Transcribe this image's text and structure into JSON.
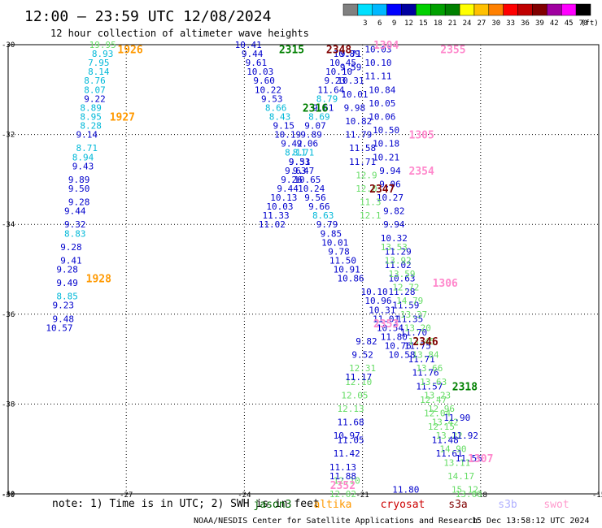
{
  "header": {
    "title": "12:00 — 23:59 UTC 12/08/2024",
    "subtitle": "12 hour collection of altimeter wave heights"
  },
  "colorbar": {
    "unit": "(ft)",
    "swatches": [
      {
        "label": "",
        "color": "#808080"
      },
      {
        "label": "3",
        "color": "#00e0ff"
      },
      {
        "label": "6",
        "color": "#00b8ff"
      },
      {
        "label": "9",
        "color": "#0000ff"
      },
      {
        "label": "12",
        "color": "#0000a0"
      },
      {
        "label": "15",
        "color": "#00d000"
      },
      {
        "label": "18",
        "color": "#00a000"
      },
      {
        "label": "21",
        "color": "#008000"
      },
      {
        "label": "24",
        "color": "#ffff00"
      },
      {
        "label": "27",
        "color": "#ffc000"
      },
      {
        "label": "30",
        "color": "#ff8000"
      },
      {
        "label": "33",
        "color": "#ff0000"
      },
      {
        "label": "36",
        "color": "#c00000"
      },
      {
        "label": "39",
        "color": "#800000"
      },
      {
        "label": "42",
        "color": "#a000a0"
      },
      {
        "label": "45",
        "color": "#ff00ff"
      },
      {
        "label": "70",
        "color": "#000000"
      }
    ]
  },
  "footer": {
    "note": "note:  1) Time is in UTC; 2) SWH is in feet",
    "credit": "NOAA/NESDIS Center for Satellite Applications and Research",
    "timestamp": "15 Dec 13:58:12 UTC 2024",
    "satellites": [
      {
        "name": "jason3",
        "color": "#006400"
      },
      {
        "name": "altika",
        "color": "#ff9900"
      },
      {
        "name": "cryosat",
        "color": "#cc0000"
      },
      {
        "name": "s3a",
        "color": "#800000"
      },
      {
        "name": "s3b",
        "color": "#b0b0ff"
      },
      {
        "name": "swot",
        "color": "#ff99cc"
      }
    ]
  },
  "chart_data": {
    "type": "scatter",
    "xlim": [
      -30,
      -15
    ],
    "ylim": [
      -40,
      -30
    ],
    "x_ticks": [
      "-30",
      "-27",
      "-24",
      "-21",
      "-18",
      "-15"
    ],
    "y_ticks": [
      "-30",
      "-32",
      "-34",
      "-36",
      "-38",
      "-40"
    ],
    "grid": true,
    "colors": {
      "c6": "#00b8d8",
      "c9": "#0000cc",
      "c12": "#00007a",
      "c15": "#66dd66",
      "jason3": "#008000",
      "altika": "#ff9900",
      "cryosat": "#cc0000",
      "s3a": "#800000",
      "swot": "#ff88cc"
    },
    "track_labels": [
      {
        "text": "1926",
        "x": -26.9,
        "y": -30.1,
        "sat": "altika"
      },
      {
        "text": "1927",
        "x": -27.1,
        "y": -31.6,
        "sat": "altika"
      },
      {
        "text": "1928",
        "x": -27.7,
        "y": -35.2,
        "sat": "altika"
      },
      {
        "text": "2315",
        "x": -22.8,
        "y": -30.1,
        "sat": "jason3"
      },
      {
        "text": "2316",
        "x": -22.2,
        "y": -31.4,
        "sat": "jason3"
      },
      {
        "text": "2318",
        "x": -18.4,
        "y": -37.6,
        "sat": "jason3"
      },
      {
        "text": "2348",
        "x": -21.6,
        "y": -30.1,
        "sat": "s3a"
      },
      {
        "text": "2347",
        "x": -20.5,
        "y": -33.2,
        "sat": "s3a"
      },
      {
        "text": "2346",
        "x": -19.4,
        "y": -36.6,
        "sat": "s3a"
      },
      {
        "text": "1304",
        "x": -20.4,
        "y": -30.0,
        "sat": "swot"
      },
      {
        "text": "1305",
        "x": -19.5,
        "y": -32.0,
        "sat": "swot"
      },
      {
        "text": "1306",
        "x": -18.9,
        "y": -35.3,
        "sat": "swot"
      },
      {
        "text": "1307",
        "x": -18.0,
        "y": -39.2,
        "sat": "swot"
      },
      {
        "text": "2355",
        "x": -18.7,
        "y": -30.1,
        "sat": "swot"
      },
      {
        "text": "2354",
        "x": -19.5,
        "y": -32.8,
        "sat": "swot"
      },
      {
        "text": "2353",
        "x": -20.4,
        "y": -36.2,
        "sat": "swot"
      },
      {
        "text": "2352",
        "x": -21.5,
        "y": -39.8,
        "sat": "swot"
      }
    ],
    "tracks": [
      {
        "name": "altika-1926",
        "x": [
          -27.6,
          -27.6,
          -27.7,
          -27.7,
          -27.8,
          -27.8,
          -27.8,
          -27.9,
          -27.9,
          -27.9,
          -28.0,
          -28.0,
          -28.1,
          -28.1,
          -28.2,
          -28.2,
          -28.2,
          -28.3,
          -28.3,
          -28.3,
          -28.4,
          -28.4,
          -28.5,
          -28.5,
          -28.5,
          -28.6,
          -28.6,
          -28.7,
          -28.7,
          -28.7
        ],
        "y": [
          -30.0,
          -30.2,
          -30.4,
          -30.6,
          -30.8,
          -31.0,
          -31.2,
          -31.4,
          -31.6,
          -31.8,
          -32.0,
          -32.3,
          -32.5,
          -32.7,
          -33.0,
          -33.2,
          -33.5,
          -33.7,
          -34.0,
          -34.2,
          -34.5,
          -34.8,
          -35.0,
          -35.3,
          -35.6,
          -35.8,
          -36.1,
          -36.3,
          -36.6,
          -36.8
        ],
        "values": [
          "19.95",
          "8.93",
          "7.95",
          "8.14",
          "8.76",
          "8.07",
          "9.22",
          "8.89",
          "8.95",
          "8.28",
          "9.14",
          "8.71",
          "8.94",
          "9.43",
          "9.89",
          "9.50",
          "9.28",
          "9.44",
          "9.32",
          "8.83",
          "9.28",
          "9.41",
          "9.28",
          "9.49",
          "8.85",
          "9.23",
          "9.48",
          "10.57",
          "",
          ""
        ],
        "cls": [
          "c15",
          "c6",
          "c6",
          "c6",
          "c6",
          "c6",
          "c9",
          "c6",
          "c6",
          "c6",
          "c9",
          "c6",
          "c6",
          "c9",
          "c9",
          "c9",
          "c9",
          "c9",
          "c9",
          "c6",
          "c9",
          "c9",
          "c9",
          "c9",
          "c6",
          "c9",
          "c9",
          "c9",
          "c9",
          "c9"
        ]
      },
      {
        "name": "jason3-2315",
        "x": [
          -23.9,
          -23.8,
          -23.7,
          -23.6,
          -23.5,
          -23.4,
          -23.3,
          -23.2,
          -23.1,
          -23.0,
          -22.9,
          -22.8,
          -22.7,
          -22.6,
          -22.5,
          -22.4,
          -22.3,
          -22.2,
          -22.1,
          -22.0,
          -21.9,
          -21.8,
          -21.7,
          -21.6,
          -21.5,
          -21.4,
          -21.3
        ],
        "y": [
          -30.0,
          -30.2,
          -30.4,
          -30.6,
          -30.8,
          -31.0,
          -31.2,
          -31.4,
          -31.6,
          -31.8,
          -32.0,
          -32.2,
          -32.4,
          -32.6,
          -32.8,
          -33.0,
          -33.2,
          -33.4,
          -33.6,
          -33.8,
          -34.0,
          -34.2,
          -34.4,
          -34.6,
          -34.8,
          -35.0,
          -35.2
        ],
        "values": [
          "10.41",
          "9.44",
          "9.61",
          "10.03",
          "9.60",
          "10.22",
          "9.53",
          "8.66",
          "8.43",
          "9.15",
          "10.19",
          "9.42",
          "8.11",
          "9.53",
          "9.47",
          "10.65",
          "10.24",
          "9.56",
          "9.66",
          "8.63",
          "9.79",
          "9.85",
          "10.01",
          "9.78",
          "11.50",
          "10.91",
          "10.86"
        ],
        "cls": [
          "c9",
          "c9",
          "c9",
          "c9",
          "c9",
          "c9",
          "c9",
          "c6",
          "c6",
          "c9",
          "c9",
          "c9",
          "c6",
          "c9",
          "c9",
          "c9",
          "c9",
          "c9",
          "c9",
          "c6",
          "c9",
          "c9",
          "c9",
          "c9",
          "c9",
          "c9",
          "c9"
        ]
      },
      {
        "name": "jason3-2316",
        "x": [
          -21.4,
          -21.5,
          -21.6,
          -21.7,
          -21.8,
          -21.9,
          -22.0,
          -22.1,
          -22.2,
          -22.3,
          -22.4,
          -22.5,
          -22.6,
          -22.7,
          -22.8,
          -22.9,
          -23.0,
          -23.1,
          -23.2,
          -23.3
        ],
        "y": [
          -30.2,
          -30.4,
          -30.6,
          -30.8,
          -31.0,
          -31.2,
          -31.4,
          -31.6,
          -31.8,
          -32.0,
          -32.2,
          -32.4,
          -32.6,
          -32.8,
          -33.0,
          -33.2,
          -33.4,
          -33.6,
          -33.8,
          -34.0
        ],
        "values": [
          "10.89",
          "10.45",
          "10.10",
          "9.23",
          "11.64",
          "8.79",
          "9.61",
          "8.69",
          "9.07",
          "9.89",
          "9.06",
          "8.71",
          "9.31",
          "9.63",
          "9.26",
          "9.44",
          "10.13",
          "10.03",
          "11.33",
          "11.02"
        ],
        "cls": [
          "c9",
          "c9",
          "c9",
          "c9",
          "c9",
          "c6",
          "c9",
          "c6",
          "c9",
          "c9",
          "c9",
          "c6",
          "c9",
          "c9",
          "c9",
          "c9",
          "c9",
          "c9",
          "c9",
          "c9"
        ]
      },
      {
        "name": "jason3-2318-blue",
        "x": [
          -20.6,
          -20.6,
          -20.6,
          -20.5,
          -20.5,
          -20.5,
          -20.4,
          -20.4,
          -20.4,
          -20.3,
          -20.3,
          -20.3,
          -20.2,
          -20.2,
          -20.2,
          -20.1,
          -20.1,
          -20.0,
          -20.0
        ],
        "y": [
          -30.1,
          -30.4,
          -30.7,
          -31.0,
          -31.3,
          -31.6,
          -31.9,
          -32.2,
          -32.5,
          -32.8,
          -33.1,
          -33.4,
          -33.7,
          -34.0,
          -34.3,
          -34.6,
          -34.9,
          -35.2,
          -35.5
        ],
        "values": [
          "10.03",
          "10.10",
          "11.11",
          "10.84",
          "10.05",
          "10.06",
          "10.50",
          "10.18",
          "10.21",
          "9.94",
          "9.06",
          "10.27",
          "9.82",
          "9.94",
          "10.32",
          "11.29",
          "11.02",
          "10.63",
          "11.28"
        ],
        "cls": [
          "c9",
          "c9",
          "c9",
          "c9",
          "c9",
          "c9",
          "c9",
          "c9",
          "c9",
          "c9",
          "c9",
          "c9",
          "c9",
          "c9",
          "c9",
          "c9",
          "c9",
          "c9",
          "c9"
        ]
      },
      {
        "name": "s3a-2348",
        "x": [
          -21.3,
          -21.3,
          -21.3,
          -21.2,
          -21.2,
          -21.1,
          -21.1,
          -21.0,
          -21.0,
          -20.9,
          -20.9,
          -20.8,
          -20.8
        ],
        "y": [
          -30.2,
          -30.5,
          -30.8,
          -31.1,
          -31.4,
          -31.7,
          -32.0,
          -32.3,
          -32.6,
          -32.9,
          -33.2,
          -33.5,
          -33.8
        ],
        "values": [
          "9.71",
          "9.59",
          "10.31",
          "10.01",
          "9.98",
          "10.82",
          "11.79",
          "11.58",
          "11.71",
          "12.9",
          "12.0",
          "11.3",
          "12.1"
        ],
        "cls": [
          "c9",
          "c9",
          "c9",
          "c9",
          "c9",
          "c9",
          "c9",
          "c9",
          "c9",
          "c15",
          "c15",
          "c15",
          "c15"
        ]
      },
      {
        "name": "s3a-2346",
        "x": [
          -19.9,
          -19.8,
          -19.7,
          -19.6,
          -19.5,
          -19.4,
          -19.3,
          -19.2,
          -19.1,
          -19.0,
          -18.9,
          -18.8
        ],
        "y": [
          -35.8,
          -36.1,
          -36.4,
          -36.7,
          -37.0,
          -37.3,
          -37.6,
          -37.9,
          -38.2,
          -38.5,
          -38.8,
          -39.1
        ],
        "values": [
          "11.59",
          "11.35",
          "11.70",
          "11.75",
          "11.71",
          "11.76",
          "11.57",
          "12.47",
          "12.04",
          "12.15",
          "11.48",
          "11.61"
        ],
        "cls": [
          "c9",
          "c9",
          "c9",
          "c9",
          "c9",
          "c9",
          "c9",
          "c15",
          "c15",
          "c15",
          "c9",
          "c9"
        ]
      },
      {
        "name": "green-2318",
        "x": [
          -20.2,
          -20.1,
          -20.0,
          -19.9,
          -19.8,
          -19.7,
          -19.6,
          -19.5,
          -19.4,
          -19.3,
          -19.2,
          -19.1,
          -19.0,
          -18.9,
          -18.8,
          -18.7,
          -18.6,
          -18.5,
          -18.4,
          -18.3
        ],
        "y": [
          -34.5,
          -34.8,
          -35.1,
          -35.4,
          -35.7,
          -36.0,
          -36.3,
          -36.6,
          -36.9,
          -37.2,
          -37.5,
          -37.8,
          -38.1,
          -38.4,
          -38.7,
          -39.0,
          -39.3,
          -39.6,
          -39.9,
          -40.0
        ],
        "values": [
          "13.53",
          "13.92",
          "13.59",
          "12.72",
          "14.79",
          "13.37",
          "13.20",
          "13.45",
          "13.84",
          "13.66",
          "13.63",
          "13.23",
          "12.96",
          "13.42",
          "13.22",
          "14.90",
          "13.11",
          "14.17",
          "15.12",
          "13.08"
        ],
        "cls": [
          "c15",
          "c15",
          "c15",
          "c15",
          "c15",
          "c15",
          "c15",
          "c15",
          "c15",
          "c15",
          "c15",
          "c15",
          "c15",
          "c15",
          "c15",
          "c15",
          "c15",
          "c15",
          "c15",
          "c15"
        ]
      },
      {
        "name": "green-2352",
        "x": [
          -21.0,
          -21.1,
          -21.2,
          -21.3,
          -21.3,
          -21.4,
          -21.4,
          -21.5
        ],
        "y": [
          -37.2,
          -37.5,
          -37.8,
          -38.1,
          -38.4,
          -38.7,
          -39.7,
          -40.0
        ],
        "values": [
          "12.31",
          "12.10",
          "12.05",
          "12.13",
          "11.68",
          "10.97",
          "12.10",
          "12.02"
        ],
        "cls": [
          "c15",
          "c15",
          "c15",
          "c15",
          "c9",
          "c9",
          "c15",
          "c15"
        ]
      },
      {
        "name": "blue-2352",
        "x": [
          -20.9,
          -21.0,
          -21.1,
          -21.3,
          -21.4,
          -21.5
        ],
        "y": [
          -36.6,
          -36.9,
          -37.4,
          -38.8,
          -39.1,
          -39.4
        ],
        "values": [
          "9.82",
          "9.52",
          "11.17",
          "11.05",
          "11.42",
          "11.13"
        ],
        "cls": [
          "c9",
          "c9",
          "c9",
          "c9",
          "c9",
          "c9"
        ]
      },
      {
        "name": "blue-end",
        "x": [
          -21.5
        ],
        "y": [
          -39.6
        ],
        "values": [
          "11.88"
        ],
        "cls": [
          "c9"
        ]
      },
      {
        "name": "swot-mid",
        "x": [
          -20.7,
          -20.6,
          -20.5,
          -20.4,
          -20.3,
          -20.2,
          -20.1,
          -20.0
        ],
        "y": [
          -35.5,
          -35.7,
          -35.9,
          -36.1,
          -36.3,
          -36.5,
          -36.7,
          -36.9
        ],
        "values": [
          "10.10",
          "10.96",
          "10.31",
          "11.01",
          "10.54",
          "11.80",
          "10.76",
          "10.58"
        ],
        "cls": [
          "c9",
          "c9",
          "c9",
          "c9",
          "c9",
          "c9",
          "c9",
          "c9"
        ]
      },
      {
        "name": "s3b-1307",
        "x": [
          -18.6,
          -18.4,
          -18.3
        ],
        "y": [
          -38.3,
          -38.7,
          -39.2
        ],
        "values": [
          "11.90",
          "11.92",
          "11.55"
        ],
        "cls": [
          "c9",
          "c9",
          "c9"
        ]
      },
      {
        "name": "blue-extra",
        "x": [
          -19.9
        ],
        "y": [
          -39.9
        ],
        "values": [
          "11.80"
        ],
        "cls": [
          "c9"
        ]
      }
    ]
  }
}
